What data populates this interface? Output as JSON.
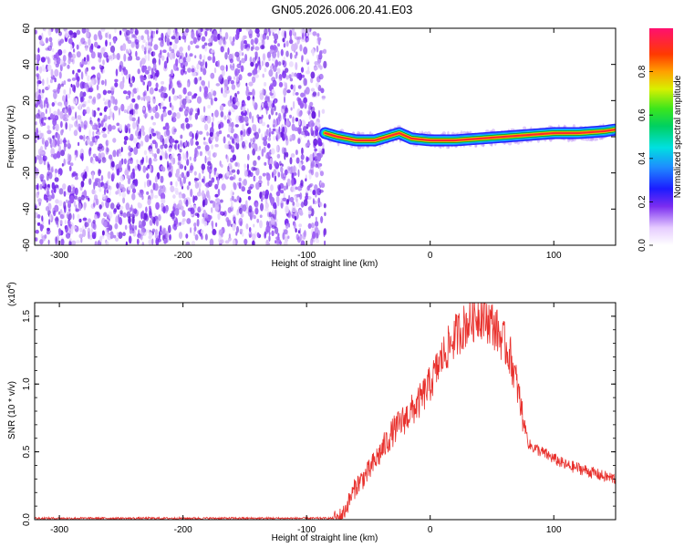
{
  "title": "GN05.2026.006.20.41.E03",
  "chart_data": [
    {
      "type": "heatmap",
      "title": "GN05.2026.006.20.41.E03",
      "xlabel": "Height of straight line (km)",
      "ylabel": "Frequency (Hz)",
      "xlim": [
        -320,
        150
      ],
      "ylim": [
        -60,
        60
      ],
      "x_ticks": [
        -300,
        -200,
        -100,
        0,
        100
      ],
      "y_ticks": [
        -60,
        -40,
        -20,
        0,
        20,
        40,
        60
      ],
      "noise_region_x": [
        -320,
        -85
      ],
      "ridge": {
        "x": [
          -85,
          -75,
          -60,
          -45,
          -35,
          -25,
          -15,
          0,
          20,
          40,
          60,
          80,
          100,
          120,
          140,
          150
        ],
        "freq": [
          2,
          0,
          -2,
          -2,
          0,
          2,
          -1,
          -2,
          -2,
          -1,
          0,
          1,
          2,
          2,
          3,
          4
        ]
      },
      "colorbar": {
        "label": "Normalized spectral amplitude",
        "range": [
          0.0,
          1.0
        ],
        "ticks": [
          0.0,
          0.2,
          0.4,
          0.6,
          0.8
        ]
      }
    },
    {
      "type": "line",
      "xlabel": "Height of straight line (km)",
      "ylabel": "SNR (10 * v/v)",
      "multiplier": "(x10",
      "multiplier_exp": "4",
      "xlim": [
        -320,
        150
      ],
      "ylim": [
        0,
        1.6
      ],
      "x_ticks": [
        -300,
        -200,
        -100,
        0,
        100
      ],
      "y_ticks": [
        "0.0",
        "0.5",
        "1.0",
        "1.5"
      ],
      "series": [
        {
          "name": "SNR",
          "color": "#e8302c",
          "x": [
            -320,
            -250,
            -150,
            -75,
            -70,
            -60,
            -50,
            -40,
            -30,
            -20,
            -10,
            0,
            10,
            20,
            30,
            40,
            50,
            60,
            65,
            70,
            75,
            80,
            90,
            100,
            110,
            120,
            130,
            140,
            150
          ],
          "y": [
            0.01,
            0.01,
            0.01,
            0.01,
            0.05,
            0.25,
            0.35,
            0.5,
            0.65,
            0.75,
            0.85,
            1.0,
            1.2,
            1.35,
            1.45,
            1.52,
            1.45,
            1.3,
            1.2,
            1.0,
            0.75,
            0.55,
            0.5,
            0.45,
            0.4,
            0.38,
            0.35,
            0.32,
            0.3
          ]
        }
      ]
    }
  ]
}
